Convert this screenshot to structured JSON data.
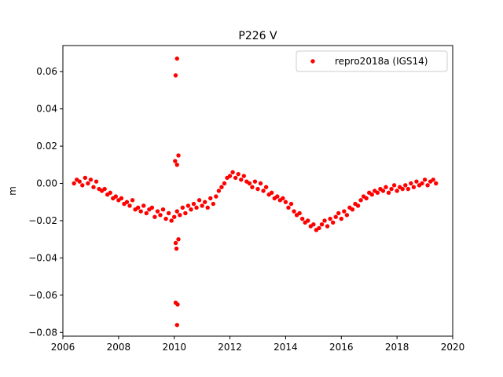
{
  "chart_data": {
    "type": "scatter",
    "title": "P226 V",
    "xlabel": "",
    "ylabel": "m",
    "xlim": [
      2006.0,
      2020.0
    ],
    "ylim": [
      -0.082,
      0.074
    ],
    "x_ticks": [
      2006,
      2008,
      2010,
      2012,
      2014,
      2016,
      2018,
      2020
    ],
    "x_tick_labels": [
      "2006",
      "2008",
      "2010",
      "2012",
      "2014",
      "2016",
      "2018",
      "2020"
    ],
    "y_ticks": [
      -0.08,
      -0.06,
      -0.04,
      -0.02,
      0.0,
      0.02,
      0.04,
      0.06
    ],
    "y_tick_labels": [
      "−0.08",
      "−0.06",
      "−0.04",
      "−0.02",
      "0.00",
      "0.02",
      "0.04",
      "0.06"
    ],
    "grid": false,
    "legend_position": "top-right",
    "series": [
      {
        "name": "repro2018a (IGS14)",
        "color": "#ff0000",
        "marker": "circle",
        "x": [
          2006.4,
          2006.5,
          2006.6,
          2006.7,
          2006.8,
          2006.9,
          2007.0,
          2007.1,
          2007.2,
          2007.3,
          2007.4,
          2007.5,
          2007.6,
          2007.7,
          2007.8,
          2007.9,
          2008.0,
          2008.1,
          2008.2,
          2008.3,
          2008.4,
          2008.5,
          2008.6,
          2008.7,
          2008.8,
          2008.9,
          2009.0,
          2009.1,
          2009.2,
          2009.3,
          2009.4,
          2009.5,
          2009.6,
          2009.7,
          2009.8,
          2009.9,
          2010.0,
          2010.1,
          2010.2,
          2010.3,
          2010.4,
          2010.5,
          2010.6,
          2010.7,
          2010.8,
          2010.9,
          2011.0,
          2011.1,
          2011.2,
          2011.3,
          2011.4,
          2011.5,
          2011.6,
          2011.7,
          2011.8,
          2011.9,
          2012.0,
          2012.1,
          2012.2,
          2012.3,
          2012.4,
          2012.5,
          2012.6,
          2012.7,
          2012.8,
          2012.9,
          2013.0,
          2013.1,
          2013.2,
          2013.3,
          2013.4,
          2013.5,
          2013.6,
          2013.7,
          2013.8,
          2013.9,
          2014.0,
          2014.1,
          2014.2,
          2014.3,
          2014.4,
          2014.5,
          2014.6,
          2014.7,
          2014.8,
          2014.9,
          2015.0,
          2015.1,
          2015.2,
          2015.3,
          2015.4,
          2015.5,
          2015.6,
          2015.7,
          2015.8,
          2015.9,
          2016.0,
          2016.1,
          2016.2,
          2016.3,
          2016.4,
          2016.5,
          2016.6,
          2016.7,
          2016.8,
          2016.9,
          2017.0,
          2017.1,
          2017.2,
          2017.3,
          2017.4,
          2017.5,
          2017.6,
          2017.7,
          2017.8,
          2017.9,
          2018.0,
          2018.1,
          2018.2,
          2018.3,
          2018.4,
          2018.5,
          2018.6,
          2018.7,
          2018.8,
          2018.9,
          2019.0,
          2019.1,
          2019.2,
          2019.3,
          2019.4,
          2010.05,
          2010.1,
          2010.15,
          2010.03,
          2010.08,
          2010.05,
          2010.1,
          2010.12,
          2010.05,
          2010.1,
          2010.15
        ],
        "y": [
          0.0,
          0.002,
          0.001,
          -0.001,
          0.003,
          0.0,
          0.002,
          -0.002,
          0.001,
          -0.003,
          -0.004,
          -0.003,
          -0.006,
          -0.005,
          -0.008,
          -0.007,
          -0.009,
          -0.008,
          -0.011,
          -0.01,
          -0.012,
          -0.009,
          -0.014,
          -0.013,
          -0.015,
          -0.012,
          -0.016,
          -0.014,
          -0.013,
          -0.018,
          -0.015,
          -0.017,
          -0.014,
          -0.019,
          -0.016,
          -0.02,
          -0.018,
          -0.015,
          -0.017,
          -0.013,
          -0.016,
          -0.012,
          -0.014,
          -0.011,
          -0.013,
          -0.009,
          -0.012,
          -0.01,
          -0.013,
          -0.008,
          -0.011,
          -0.007,
          -0.004,
          -0.002,
          0.0,
          0.003,
          0.004,
          0.006,
          0.003,
          0.005,
          0.002,
          0.004,
          0.001,
          0.0,
          -0.002,
          0.001,
          -0.003,
          0.0,
          -0.004,
          -0.002,
          -0.006,
          -0.005,
          -0.008,
          -0.007,
          -0.009,
          -0.008,
          -0.01,
          -0.013,
          -0.011,
          -0.015,
          -0.017,
          -0.016,
          -0.019,
          -0.021,
          -0.02,
          -0.023,
          -0.022,
          -0.025,
          -0.024,
          -0.022,
          -0.02,
          -0.023,
          -0.019,
          -0.021,
          -0.018,
          -0.016,
          -0.019,
          -0.015,
          -0.017,
          -0.013,
          -0.014,
          -0.011,
          -0.012,
          -0.009,
          -0.007,
          -0.008,
          -0.005,
          -0.006,
          -0.004,
          -0.005,
          -0.003,
          -0.004,
          -0.002,
          -0.005,
          -0.003,
          -0.001,
          -0.004,
          -0.002,
          -0.003,
          -0.001,
          -0.003,
          -0.0,
          -0.002,
          0.001,
          -0.001,
          0.0,
          0.002,
          -0.001,
          0.001,
          0.002,
          0.0,
          0.058,
          0.067,
          0.015,
          0.012,
          -0.035,
          -0.064,
          -0.076,
          -0.065,
          -0.032,
          0.01,
          -0.03
        ]
      }
    ]
  }
}
